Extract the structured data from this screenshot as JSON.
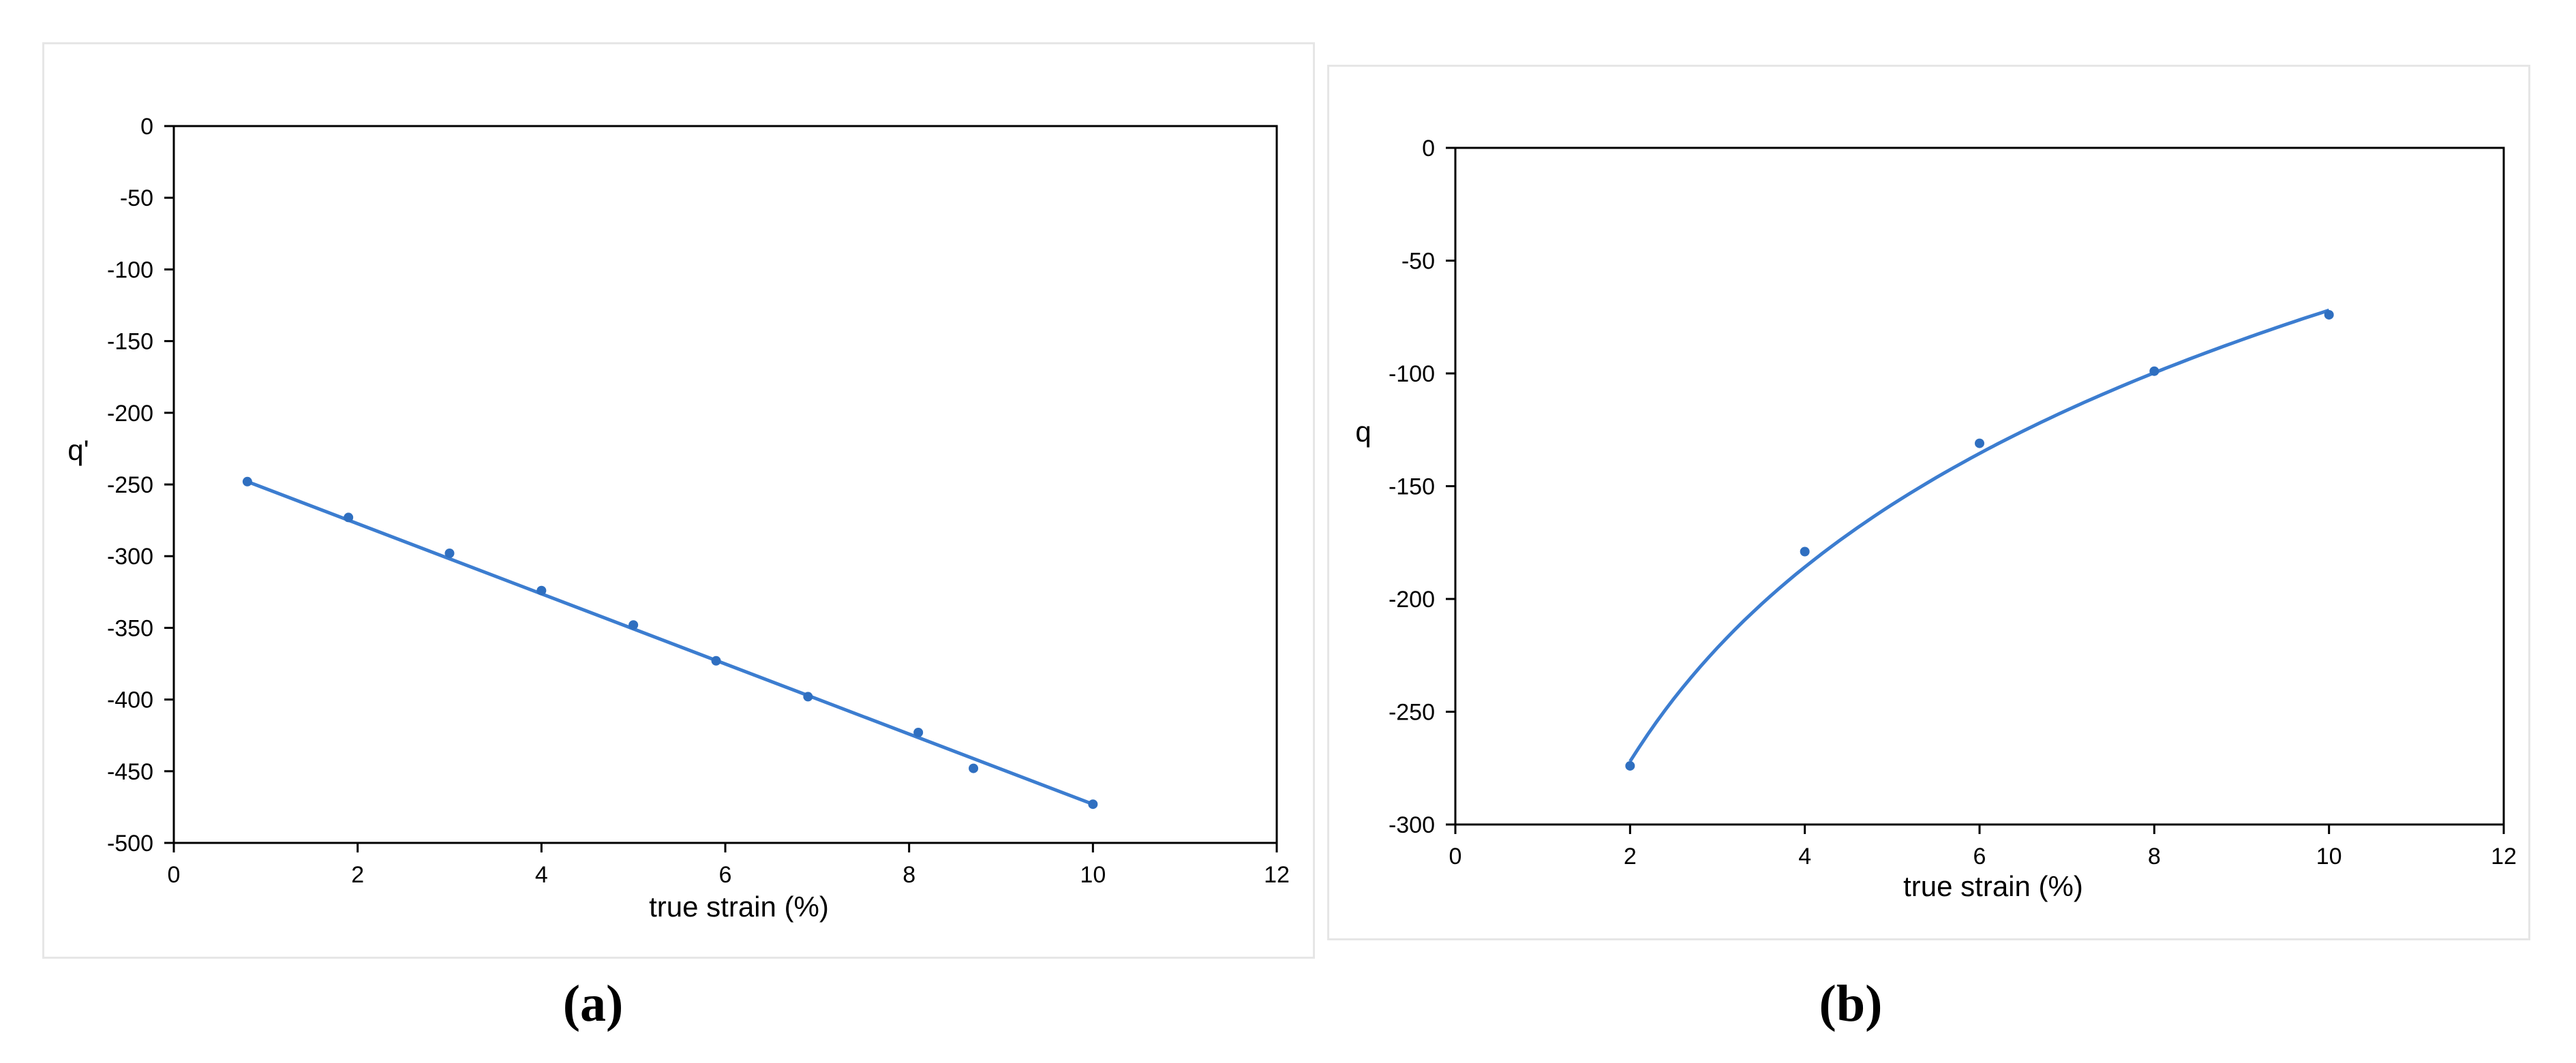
{
  "chart_data": [
    {
      "type": "scatter",
      "panel_label": "(a)",
      "xlabel": "true strain (%)",
      "ylabel": "q'",
      "xlim": [
        0,
        12
      ],
      "ylim": [
        -500,
        0
      ],
      "xticks": [
        0,
        2,
        4,
        6,
        8,
        10,
        12
      ],
      "yticks": [
        0,
        -50,
        -100,
        -150,
        -200,
        -250,
        -300,
        -350,
        -400,
        -450,
        -500
      ],
      "grid": false,
      "legend": "none",
      "point_color": "#2f6fc0",
      "line_color": "#3c7dd0",
      "series": [
        {
          "points": [
            [
              0.8,
              -248
            ],
            [
              1.9,
              -273
            ],
            [
              3.0,
              -298
            ],
            [
              4.0,
              -324
            ],
            [
              5.0,
              -348
            ],
            [
              5.9,
              -373
            ],
            [
              6.9,
              -398
            ],
            [
              8.1,
              -423
            ],
            [
              8.7,
              -448
            ],
            [
              10.0,
              -473
            ]
          ]
        }
      ],
      "trendline": {
        "kind": "linear",
        "x": [
          0.8,
          10.0
        ],
        "y": [
          -248,
          -473
        ]
      }
    },
    {
      "type": "scatter",
      "panel_label": "(b)",
      "xlabel": "true strain (%)",
      "ylabel": "q",
      "xlim": [
        0,
        12
      ],
      "ylim": [
        -300,
        0
      ],
      "xticks": [
        0,
        2,
        4,
        6,
        8,
        10,
        12
      ],
      "yticks": [
        0,
        -50,
        -100,
        -150,
        -200,
        -250,
        -300
      ],
      "grid": false,
      "legend": "none",
      "point_color": "#2f6fc0",
      "line_color": "#3c7dd0",
      "series": [
        {
          "points": [
            [
              2.0,
              -274
            ],
            [
              4.0,
              -179
            ],
            [
              6.0,
              -131
            ],
            [
              8.0,
              -99
            ],
            [
              10.0,
              -74
            ]
          ]
        }
      ],
      "trendline": {
        "kind": "log",
        "x": [
          2.0,
          10.0
        ],
        "y": [
          -272,
          -72
        ]
      }
    }
  ]
}
